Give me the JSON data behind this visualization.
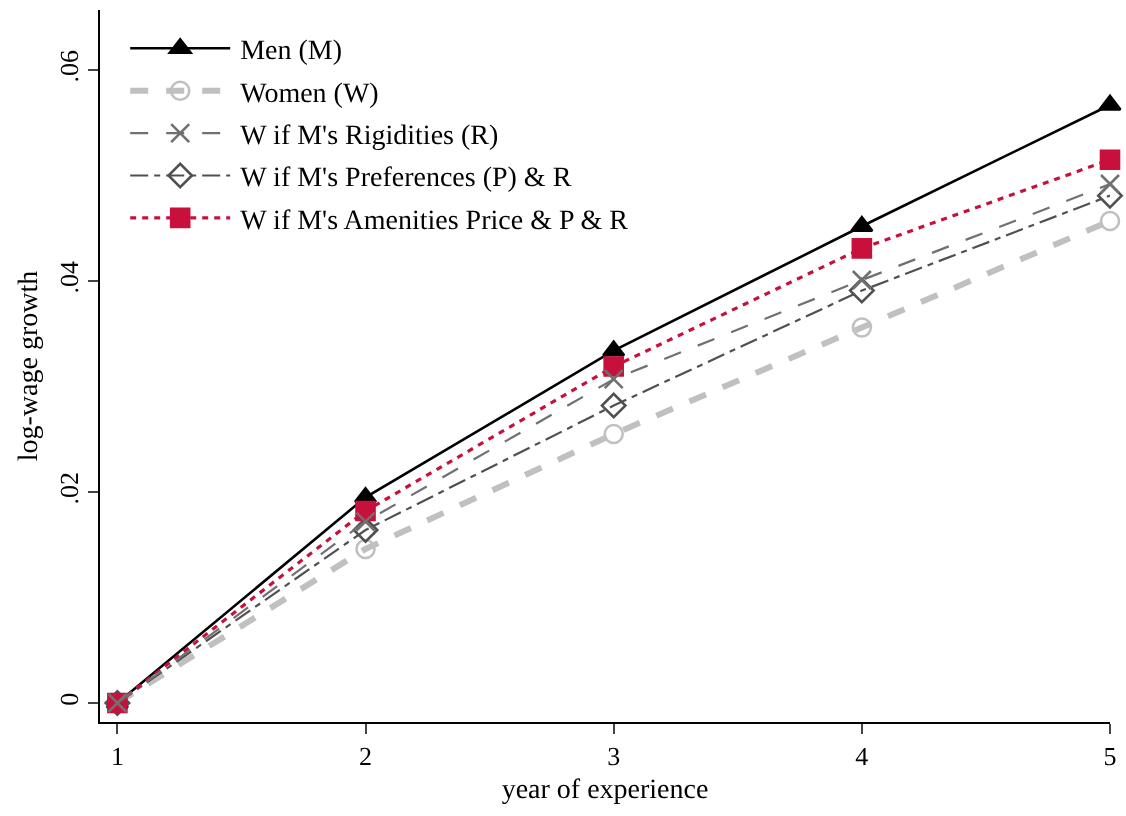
{
  "chart_data": {
    "type": "line",
    "xlabel": "year of experience",
    "ylabel": "log-wage growth",
    "x": [
      1,
      2,
      3,
      4,
      5
    ],
    "xlim": [
      0.93,
      5
    ],
    "xticks": [
      1,
      2,
      3,
      4,
      5
    ],
    "ylim": [
      -0.0018,
      0.0657
    ],
    "yticks": [
      {
        "value": 0,
        "label": "0"
      },
      {
        "value": 0.02,
        "label": ".02"
      },
      {
        "value": 0.04,
        "label": ".04"
      },
      {
        "value": 0.06,
        "label": ".06"
      }
    ],
    "grid": false,
    "legend": "top left",
    "series": [
      {
        "name": "Men (M)",
        "color": "#000000",
        "marker": "triangle",
        "line_style": "solid",
        "values": [
          0,
          0.0195,
          0.0334,
          0.0452,
          0.0567
        ]
      },
      {
        "name": "Women (W)",
        "color": "#c0c0c0",
        "marker": "circle-open",
        "line_style": "dashed",
        "values": [
          0,
          0.0146,
          0.0255,
          0.0356,
          0.0457
        ]
      },
      {
        "name": "W if M's Rigidities (R)",
        "color": "#707070",
        "marker": "cross",
        "line_style": "dashed",
        "values": [
          0,
          0.0172,
          0.0307,
          0.0401,
          0.0492
        ]
      },
      {
        "name": "W if M's Preferences (P) & R",
        "color": "#505050",
        "marker": "diamond-open",
        "line_style": "dashdot",
        "values": [
          0,
          0.0164,
          0.0282,
          0.0391,
          0.0481
        ]
      },
      {
        "name": "W if M's Amenities Price & P & R",
        "color": "#c8103c",
        "marker": "square",
        "line_style": "dotted",
        "values": [
          0,
          0.0182,
          0.0319,
          0.0431,
          0.0515
        ]
      }
    ]
  }
}
